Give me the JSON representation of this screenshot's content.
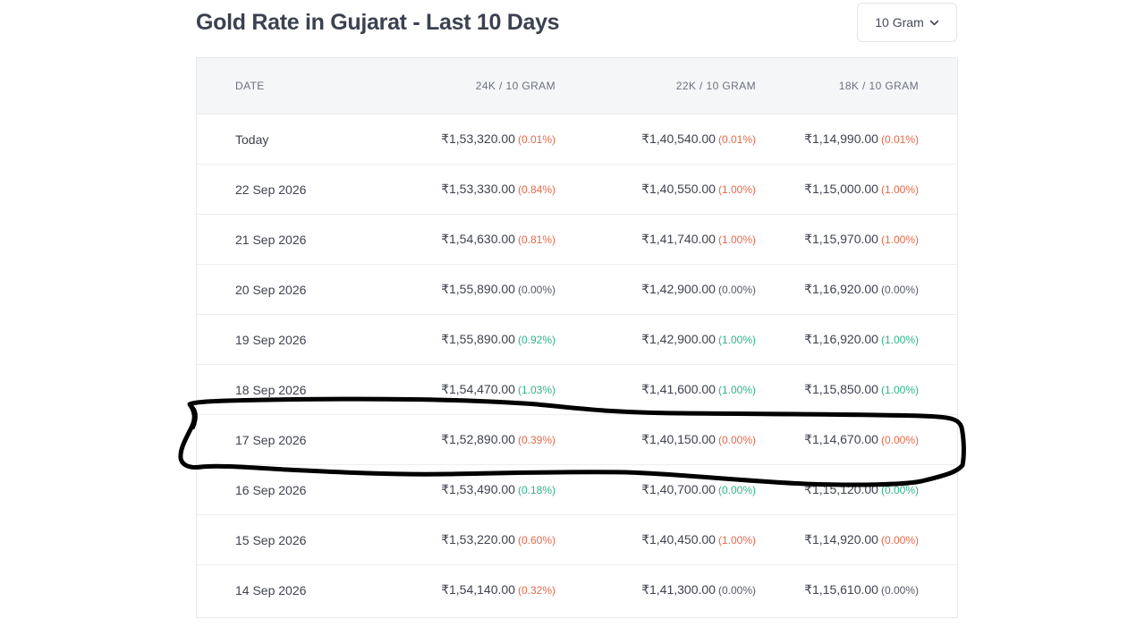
{
  "page": {
    "title": "Gold Rate in Gujarat - Last 10 Days"
  },
  "unit_selector": {
    "selected": "10 Gram",
    "icon": "chevron-down-icon"
  },
  "table": {
    "headers": {
      "date": "DATE",
      "k24": "24K / 10 GRAM",
      "k22": "22K / 10 GRAM",
      "k18": "18K / 10 GRAM"
    },
    "rows": [
      {
        "date": "Today",
        "k24": {
          "price": "₹1,53,320.00",
          "change": "(0.01%)",
          "trend": "down"
        },
        "k22": {
          "price": "₹1,40,540.00",
          "change": "(0.01%)",
          "trend": "down"
        },
        "k18": {
          "price": "₹1,14,990.00",
          "change": "(0.01%)",
          "trend": "down"
        }
      },
      {
        "date": "22 Sep 2026",
        "k24": {
          "price": "₹1,53,330.00",
          "change": "(0.84%)",
          "trend": "down"
        },
        "k22": {
          "price": "₹1,40,550.00",
          "change": "(1.00%)",
          "trend": "down"
        },
        "k18": {
          "price": "₹1,15,000.00",
          "change": "(1.00%)",
          "trend": "down"
        }
      },
      {
        "date": "21 Sep 2026",
        "k24": {
          "price": "₹1,54,630.00",
          "change": "(0.81%)",
          "trend": "down"
        },
        "k22": {
          "price": "₹1,41,740.00",
          "change": "(1.00%)",
          "trend": "down"
        },
        "k18": {
          "price": "₹1,15,970.00",
          "change": "(1.00%)",
          "trend": "down"
        }
      },
      {
        "date": "20 Sep 2026",
        "k24": {
          "price": "₹1,55,890.00",
          "change": "(0.00%)",
          "trend": "flat"
        },
        "k22": {
          "price": "₹1,42,900.00",
          "change": "(0.00%)",
          "trend": "flat"
        },
        "k18": {
          "price": "₹1,16,920.00",
          "change": "(0.00%)",
          "trend": "flat"
        }
      },
      {
        "date": "19 Sep 2026",
        "k24": {
          "price": "₹1,55,890.00",
          "change": "(0.92%)",
          "trend": "up"
        },
        "k22": {
          "price": "₹1,42,900.00",
          "change": "(1.00%)",
          "trend": "up"
        },
        "k18": {
          "price": "₹1,16,920.00",
          "change": "(1.00%)",
          "trend": "up"
        }
      },
      {
        "date": "18 Sep 2026",
        "k24": {
          "price": "₹1,54,470.00",
          "change": "(1.03%)",
          "trend": "up"
        },
        "k22": {
          "price": "₹1,41,600.00",
          "change": "(1.00%)",
          "trend": "up"
        },
        "k18": {
          "price": "₹1,15,850.00",
          "change": "(1.00%)",
          "trend": "up"
        }
      },
      {
        "date": "17 Sep 2026",
        "k24": {
          "price": "₹1,52,890.00",
          "change": "(0.39%)",
          "trend": "down"
        },
        "k22": {
          "price": "₹1,40,150.00",
          "change": "(0.00%)",
          "trend": "down"
        },
        "k18": {
          "price": "₹1,14,670.00",
          "change": "(0.00%)",
          "trend": "down"
        }
      },
      {
        "date": "16 Sep 2026",
        "k24": {
          "price": "₹1,53,490.00",
          "change": "(0.18%)",
          "trend": "up"
        },
        "k22": {
          "price": "₹1,40,700.00",
          "change": "(0.00%)",
          "trend": "up"
        },
        "k18": {
          "price": "₹1,15,120.00",
          "change": "(0.00%)",
          "trend": "up"
        }
      },
      {
        "date": "15 Sep 2026",
        "k24": {
          "price": "₹1,53,220.00",
          "change": "(0.60%)",
          "trend": "down"
        },
        "k22": {
          "price": "₹1,40,450.00",
          "change": "(1.00%)",
          "trend": "down"
        },
        "k18": {
          "price": "₹1,14,920.00",
          "change": "(0.00%)",
          "trend": "down"
        }
      },
      {
        "date": "14 Sep 2026",
        "k24": {
          "price": "₹1,54,140.00",
          "change": "(0.32%)",
          "trend": "down"
        },
        "k22": {
          "price": "₹1,41,300.00",
          "change": "(0.00%)",
          "trend": "flat"
        },
        "k18": {
          "price": "₹1,15,610.00",
          "change": "(0.00%)",
          "trend": "flat"
        }
      }
    ]
  },
  "colors": {
    "down": "#e3694b",
    "up": "#2fb38c",
    "flat": "#555a66",
    "header_bg": "#f5f6f8",
    "annotation_ink": "#000000"
  },
  "annotation": {
    "type": "hand-drawn-circle",
    "highlighted_row": "17 Sep 2026"
  }
}
